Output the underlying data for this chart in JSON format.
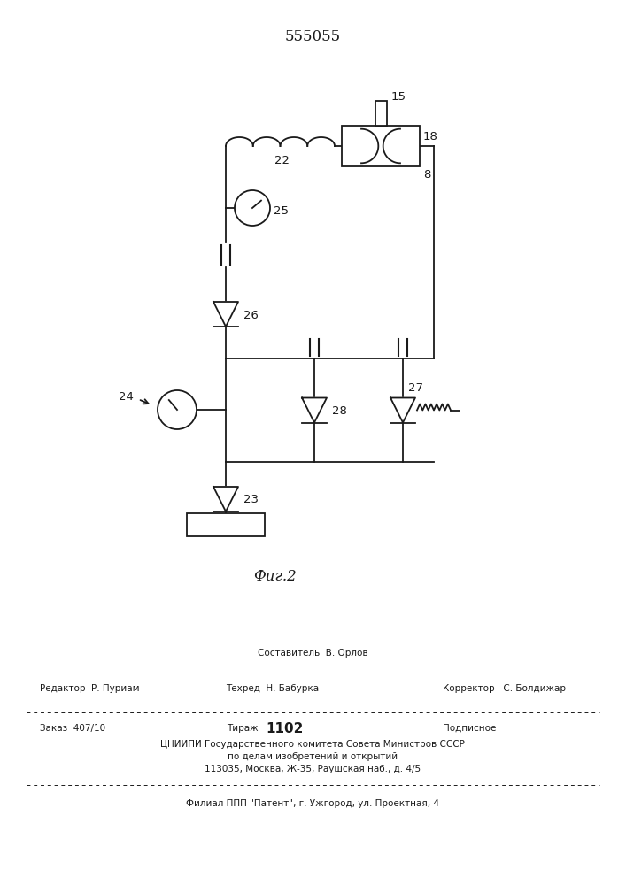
{
  "title": "555055",
  "fig_label": "Фиг.2",
  "background": "#ffffff",
  "line_color": "#1a1a1a",
  "lw": 1.3,
  "footer": {
    "sostavitel": "Составитель  В. Орлов",
    "redaktor": "Редактор  Р. Пуриам",
    "tehred": "Техред  Н. Бабурка",
    "korrektor": "Корректор   С. Болдижар",
    "zakaz": "Заказ  407/10",
    "tirazh_label": "Тираж",
    "tirazh_num": "1102",
    "podpisnoe": "Подписное",
    "org1": "ЦНИИПИ Государственного комитета Совета Министров СССР",
    "org2": "по делам изобретений и открытий",
    "addr": "113035, Москва, Ж-35, Раушская наб., д. 4/5",
    "filial": "Филиал ППП \"Патент\", г. Ужгород, ул. Проектная, 4"
  }
}
